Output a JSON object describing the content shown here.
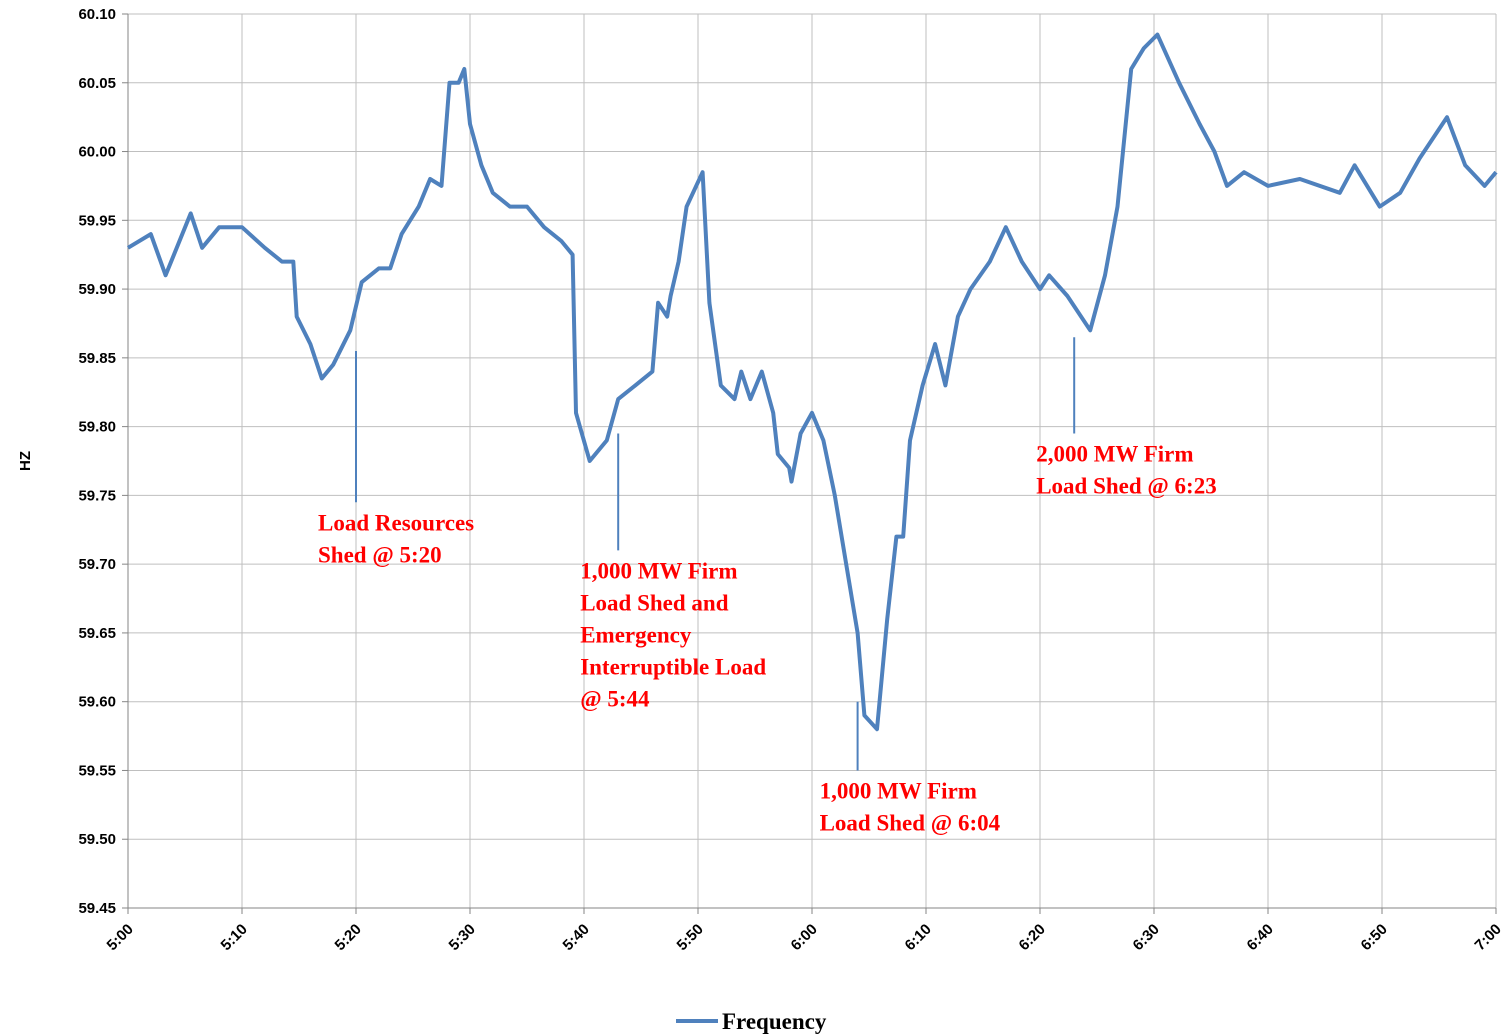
{
  "chart_data": {
    "type": "line",
    "y_label": "HZ",
    "x": [
      300,
      302,
      303.3,
      305.5,
      306.5,
      308,
      310,
      312,
      313.5,
      314.5,
      314.8,
      316,
      317,
      318,
      319.5,
      320.5,
      322,
      323,
      324,
      325.5,
      326.5,
      327.5,
      328.2,
      329,
      329.5,
      330,
      331,
      332,
      333.5,
      335,
      336.5,
      338,
      339,
      339.3,
      340.5,
      342,
      343,
      344.5,
      346,
      346.5,
      347.3,
      347.6,
      348.3,
      349,
      350.4,
      351,
      352,
      353.2,
      353.8,
      354.6,
      355.6,
      356.6,
      357,
      358,
      358.2,
      359,
      360,
      361,
      362,
      363,
      364,
      364.6,
      365.7,
      366.6,
      367.4,
      368,
      368.6,
      369.7,
      370.8,
      371.7,
      372.8,
      373.9,
      375.6,
      377,
      378.4,
      380,
      380.8,
      382.4,
      384.4,
      385.7,
      386.8,
      388,
      389.1,
      390.3,
      392.2,
      394,
      395.3,
      396.4,
      397.9,
      400,
      402.8,
      406.3,
      407.6,
      409.8,
      411.6,
      413.3,
      415.7,
      417.3,
      419,
      420
    ],
    "series": [
      {
        "name": "Frequency",
        "color": "#4f81bd",
        "values": [
          59.93,
          59.94,
          59.91,
          59.955,
          59.93,
          59.945,
          59.945,
          59.93,
          59.92,
          59.92,
          59.88,
          59.86,
          59.835,
          59.845,
          59.87,
          59.905,
          59.915,
          59.915,
          59.94,
          59.96,
          59.98,
          59.975,
          60.05,
          60.05,
          60.06,
          60.02,
          59.99,
          59.97,
          59.96,
          59.96,
          59.945,
          59.935,
          59.925,
          59.81,
          59.775,
          59.79,
          59.82,
          59.83,
          59.84,
          59.89,
          59.88,
          59.895,
          59.92,
          59.96,
          59.985,
          59.89,
          59.83,
          59.82,
          59.84,
          59.82,
          59.84,
          59.81,
          59.78,
          59.77,
          59.76,
          59.795,
          59.81,
          59.79,
          59.75,
          59.7,
          59.65,
          59.59,
          59.58,
          59.66,
          59.72,
          59.72,
          59.79,
          59.83,
          59.86,
          59.83,
          59.88,
          59.9,
          59.92,
          59.945,
          59.92,
          59.9,
          59.91,
          59.895,
          59.87,
          59.91,
          59.96,
          60.06,
          60.075,
          60.085,
          60.05,
          60.02,
          60.0,
          59.975,
          59.985,
          59.975,
          59.98,
          59.97,
          59.99,
          59.96,
          59.97,
          59.995,
          60.025,
          59.99,
          59.975,
          59.985
        ]
      }
    ],
    "xlim": [
      300,
      420
    ],
    "xticks": [
      {
        "value": 300,
        "label": "5:00"
      },
      {
        "value": 310,
        "label": "5:10"
      },
      {
        "value": 320,
        "label": "5:20"
      },
      {
        "value": 330,
        "label": "5:30"
      },
      {
        "value": 340,
        "label": "5:40"
      },
      {
        "value": 350,
        "label": "5:50"
      },
      {
        "value": 360,
        "label": "6:00"
      },
      {
        "value": 370,
        "label": "6:10"
      },
      {
        "value": 380,
        "label": "6:20"
      },
      {
        "value": 390,
        "label": "6:30"
      },
      {
        "value": 400,
        "label": "6:40"
      },
      {
        "value": 410,
        "label": "6:50"
      },
      {
        "value": 420,
        "label": "7:00"
      }
    ],
    "ylim": [
      59.45,
      60.1
    ],
    "yticks": [
      {
        "value": 59.45,
        "label": "59.45"
      },
      {
        "value": 59.5,
        "label": "59.50"
      },
      {
        "value": 59.55,
        "label": "59.55"
      },
      {
        "value": 59.6,
        "label": "59.60"
      },
      {
        "value": 59.65,
        "label": "59.65"
      },
      {
        "value": 59.7,
        "label": "59.70"
      },
      {
        "value": 59.75,
        "label": "59.75"
      },
      {
        "value": 59.8,
        "label": "59.80"
      },
      {
        "value": 59.85,
        "label": "59.85"
      },
      {
        "value": 59.9,
        "label": "59.90"
      },
      {
        "value": 59.95,
        "label": "59.95"
      },
      {
        "value": 60.0,
        "label": "60.00"
      },
      {
        "value": 60.05,
        "label": "60.05"
      },
      {
        "value": 60.1,
        "label": "60.10"
      }
    ],
    "grid": true,
    "legend": "bottom",
    "annotations": [
      {
        "x": 320,
        "from": 59.855,
        "to": 59.745,
        "lines": [
          "Load Resources",
          "Shed @ 5:20"
        ]
      },
      {
        "x": 343,
        "from": 59.795,
        "to": 59.71,
        "lines": [
          "1,000 MW Firm",
          "Load Shed and",
          "Emergency",
          "Interruptible Load",
          "@ 5:44"
        ]
      },
      {
        "x": 364,
        "from": 59.6,
        "to": 59.55,
        "lines": [
          "1,000 MW Firm",
          "Load Shed @ 6:04"
        ]
      },
      {
        "x": 383,
        "from": 59.865,
        "to": 59.795,
        "lines": [
          "2,000 MW Firm",
          "Load Shed @ 6:23"
        ]
      }
    ]
  }
}
